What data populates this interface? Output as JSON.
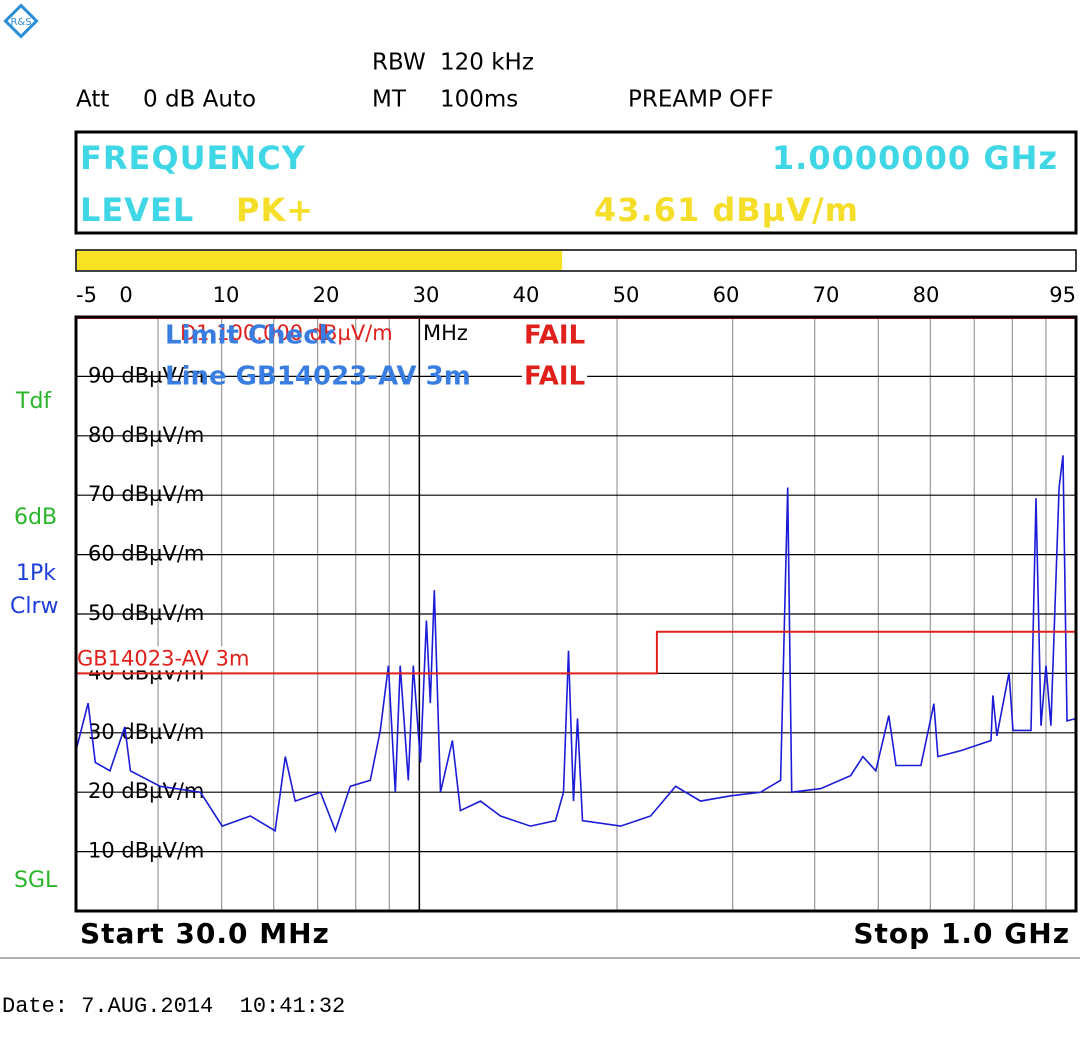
{
  "header": {
    "att_label": "Att",
    "att": "0 dB Auto",
    "rbw_label": "RBW",
    "rbw": "120 kHz",
    "mt_label": "MT",
    "mt": "100ms",
    "preamp": "PREAMP OFF"
  },
  "readout": {
    "frequency_label": "FREQUENCY",
    "frequency": "1.0000000 GHz",
    "level_label": "LEVEL",
    "detector": "PK+",
    "level": "43.61 dBµV/m"
  },
  "level_bar": {
    "value": 43.61,
    "color": "#f7e224",
    "xlim": [
      -5,
      95
    ],
    "xticks": [
      -5,
      0,
      10,
      20,
      30,
      40,
      50,
      60,
      70,
      80,
      95
    ]
  },
  "side_labels": {
    "tdf": "Tdf",
    "rbw_step": "6dB",
    "trace": "1Pk",
    "trace_mode": "Clrw",
    "sweep": "SGL"
  },
  "limit_check": {
    "title": "Limit Check",
    "result": "FAIL",
    "line": "Line GB14023-AV 3m",
    "line_result": "FAIL"
  },
  "marker_text": {
    "display_line": "D1 100.000 dBµV/m",
    "unit": "MHz"
  },
  "chart_data": {
    "type": "line",
    "log_x": true,
    "grid": true,
    "xlim": [
      30,
      1000
    ],
    "ylim": [
      0,
      100
    ],
    "xticks": [
      30,
      40,
      50,
      60,
      70,
      80,
      90,
      100,
      200,
      300,
      400,
      500,
      600,
      700,
      800,
      900,
      1000
    ],
    "yticks": [
      {
        "value": 10,
        "label": "10 dBµV/m"
      },
      {
        "value": 20,
        "label": "20 dBµV/m"
      },
      {
        "value": 30,
        "label": "30 dBµV/m"
      },
      {
        "value": 40,
        "label": "40 dBµV/m"
      },
      {
        "value": 50,
        "label": "50 dBµV/m"
      },
      {
        "value": 60,
        "label": "60 dBµV/m"
      },
      {
        "value": 70,
        "label": "70 dBµV/m"
      },
      {
        "value": 80,
        "label": "80 dBµV/m"
      },
      {
        "value": 90,
        "label": "90 dBµV/m"
      }
    ],
    "display_line": {
      "value": 100,
      "color": "#e0201a"
    },
    "start_label": "Start 30.0 MHz",
    "stop_label": "Stop 1.0 GHz",
    "series": [
      {
        "color": "#1c1cd8",
        "x": [
          30,
          31.3,
          32.1,
          33.8,
          35.6,
          36.3,
          40.3,
          46.4,
          50.1,
          55.3,
          60.3,
          62.5,
          64.7,
          70.7,
          74.5,
          78.5,
          84.2,
          87.2,
          89.7,
          91.9,
          93.5,
          96.2,
          97.9,
          100.4,
          102.5,
          103.9,
          105.4,
          107.7,
          112.3,
          115.5,
          123.9,
          132.9,
          147.6,
          161.2,
          165.8,
          168.7,
          171.7,
          174.1,
          177.2,
          202.5,
          225,
          245.6,
          268.1,
          297.9,
          330.9,
          354.9,
          363.9,
          369,
          408.6,
          453.9,
          473.7,
          495.6,
          518.7,
          531.9,
          580.5,
          607.5,
          616.2,
          667.8,
          742.2,
          747.3,
          757.8,
          790.5,
          801.9,
          854.1,
          869.1,
          884.4,
          900,
          915.9,
          942.3,
          955.5,
          969,
          1000
        ],
        "values": [
          27,
          35,
          25,
          23.6,
          31,
          23.6,
          21,
          20,
          14.3,
          16,
          13.5,
          26,
          18.5,
          20,
          13.5,
          21,
          22,
          30.4,
          41.3,
          20,
          41.3,
          22,
          41.3,
          25,
          48.9,
          35,
          54,
          20,
          28.7,
          16.9,
          18.5,
          16,
          14.3,
          15.2,
          20,
          43.8,
          18.5,
          32.4,
          15.2,
          14.3,
          16,
          21,
          18.5,
          19.4,
          20,
          22,
          71.3,
          20,
          20.6,
          22.8,
          26,
          23.6,
          32.9,
          24.5,
          24.5,
          34.9,
          26,
          27,
          28.7,
          36.3,
          29.5,
          40.1,
          30.4,
          30.4,
          69.5,
          31.2,
          41.3,
          31.2,
          71.3,
          76.7,
          32,
          32.4
        ]
      },
      {
        "name": "GB14023-AV 3m",
        "color": "#e0201a",
        "x": [
          30,
          230,
          230,
          1000
        ],
        "values": [
          40,
          40,
          47,
          47
        ]
      }
    ]
  },
  "footer": {
    "date": "Date: 7.AUG.2014  10:41:32"
  }
}
